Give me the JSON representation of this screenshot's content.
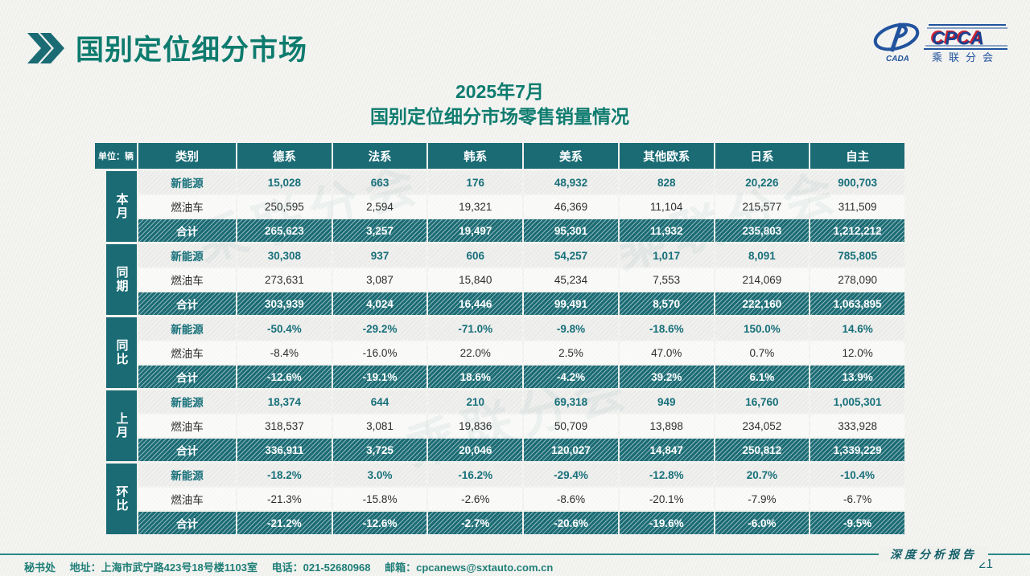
{
  "page": {
    "title": "国别定位细分市场",
    "subtitle_line1": "2025年7月",
    "subtitle_line2": "国别定位细分市场零售销量情况",
    "report_label": "深度分析报告",
    "page_number": "21",
    "watermark": "乘联分会"
  },
  "logo": {
    "cpca": "CPCA",
    "sub": "乘联分会",
    "cada": "CADA"
  },
  "footer": {
    "dept": "秘书处",
    "address": "地址：上海市武宁路423号18号楼1103室",
    "phone": "电话：021-52680968",
    "email": "邮箱：cpcanews@sxtauto.com.cn"
  },
  "colors": {
    "teal_dark": "#1a6b74",
    "title_teal": "#0d7b6e",
    "nev_text": "#17707a",
    "row_gray": "#ebebe9",
    "row_white": "#f8f8f6",
    "footer_teal": "#1f7f77",
    "logo_blue": "#21539e",
    "logo_red": "#cd2332"
  },
  "table": {
    "unit_label": "单位：辆",
    "category_header": "类别",
    "columns": [
      "德系",
      "法系",
      "韩系",
      "美系",
      "其他欧系",
      "日系",
      "自主"
    ],
    "groups": [
      {
        "label": "本月",
        "rows": [
          {
            "label": "新能源",
            "style": "nev",
            "values": [
              "15,028",
              "663",
              "176",
              "48,932",
              "828",
              "20,226",
              "900,703"
            ]
          },
          {
            "label": "燃油车",
            "style": "fuel",
            "values": [
              "250,595",
              "2,594",
              "19,321",
              "46,369",
              "11,104",
              "215,577",
              "311,509"
            ]
          },
          {
            "label": "合计",
            "style": "total",
            "values": [
              "265,623",
              "3,257",
              "19,497",
              "95,301",
              "11,932",
              "235,803",
              "1,212,212"
            ]
          }
        ]
      },
      {
        "label": "同期",
        "rows": [
          {
            "label": "新能源",
            "style": "nev",
            "values": [
              "30,308",
              "937",
              "606",
              "54,257",
              "1,017",
              "8,091",
              "785,805"
            ]
          },
          {
            "label": "燃油车",
            "style": "fuel",
            "values": [
              "273,631",
              "3,087",
              "15,840",
              "45,234",
              "7,553",
              "214,069",
              "278,090"
            ]
          },
          {
            "label": "合计",
            "style": "total",
            "values": [
              "303,939",
              "4,024",
              "16,446",
              "99,491",
              "8,570",
              "222,160",
              "1,063,895"
            ]
          }
        ]
      },
      {
        "label": "同比",
        "rows": [
          {
            "label": "新能源",
            "style": "nev",
            "values": [
              "-50.4%",
              "-29.2%",
              "-71.0%",
              "-9.8%",
              "-18.6%",
              "150.0%",
              "14.6%"
            ]
          },
          {
            "label": "燃油车",
            "style": "fuel",
            "values": [
              "-8.4%",
              "-16.0%",
              "22.0%",
              "2.5%",
              "47.0%",
              "0.7%",
              "12.0%"
            ]
          },
          {
            "label": "合计",
            "style": "total",
            "values": [
              "-12.6%",
              "-19.1%",
              "18.6%",
              "-4.2%",
              "39.2%",
              "6.1%",
              "13.9%"
            ]
          }
        ]
      },
      {
        "label": "上月",
        "rows": [
          {
            "label": "新能源",
            "style": "nev",
            "values": [
              "18,374",
              "644",
              "210",
              "69,318",
              "949",
              "16,760",
              "1,005,301"
            ]
          },
          {
            "label": "燃油车",
            "style": "fuel",
            "values": [
              "318,537",
              "3,081",
              "19,836",
              "50,709",
              "13,898",
              "234,052",
              "333,928"
            ]
          },
          {
            "label": "合计",
            "style": "total",
            "values": [
              "336,911",
              "3,725",
              "20,046",
              "120,027",
              "14,847",
              "250,812",
              "1,339,229"
            ]
          }
        ]
      },
      {
        "label": "环比",
        "rows": [
          {
            "label": "新能源",
            "style": "nev",
            "values": [
              "-18.2%",
              "3.0%",
              "-16.2%",
              "-29.4%",
              "-12.8%",
              "20.7%",
              "-10.4%"
            ]
          },
          {
            "label": "燃油车",
            "style": "fuel",
            "values": [
              "-21.3%",
              "-15.8%",
              "-2.6%",
              "-8.6%",
              "-20.1%",
              "-7.9%",
              "-6.7%"
            ]
          },
          {
            "label": "合计",
            "style": "total",
            "values": [
              "-21.2%",
              "-12.6%",
              "-2.7%",
              "-20.6%",
              "-19.6%",
              "-6.0%",
              "-9.5%"
            ]
          }
        ]
      }
    ]
  }
}
